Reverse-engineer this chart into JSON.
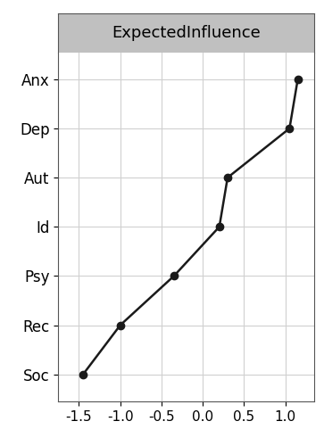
{
  "nodes": [
    "Soc",
    "Rec",
    "Psy",
    "Id",
    "Aut",
    "Dep",
    "Anx"
  ],
  "values": [
    -1.45,
    -1.0,
    -0.35,
    0.2,
    0.3,
    1.05,
    1.15
  ],
  "title": "ExpectedInfluence",
  "xlim": [
    -1.75,
    1.35
  ],
  "xticks": [
    -1.5,
    -1.0,
    -0.5,
    0.0,
    0.5,
    1.0
  ],
  "line_color": "#1a1a1a",
  "marker_color": "#1a1a1a",
  "grid_color": "#d0d0d0",
  "bg_color": "#ffffff",
  "panel_border_color": "#555555",
  "title_bg_color": "#c0c0c0",
  "title_border_color": "#555555",
  "marker_size": 6,
  "line_width": 1.8,
  "title_fontsize": 13,
  "tick_fontsize": 11,
  "label_fontsize": 12
}
